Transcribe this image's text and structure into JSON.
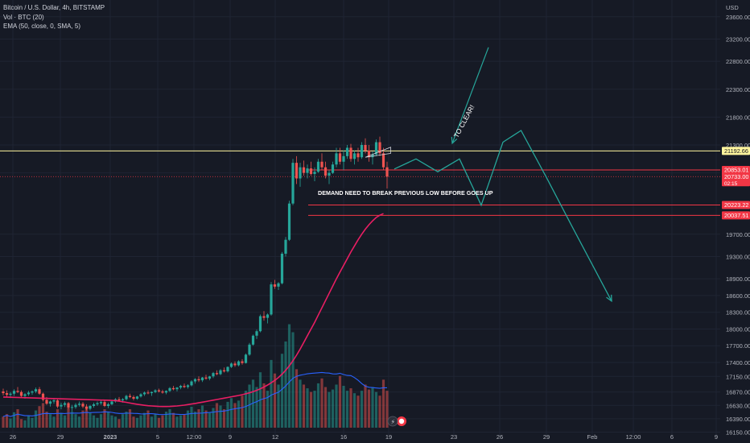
{
  "legend": {
    "symbol_line": "Bitcoin / U.S. Dollar, 4h, BITSTAMP",
    "volume_line": "Vol · BTC (20)",
    "ema_line": "EMA (50, close, 0, SMA, 5)"
  },
  "price_axis": {
    "currency": "USD",
    "ticks": [
      "23600.00",
      "23200.00",
      "22800.00",
      "22300.00",
      "21800.00",
      "21300.00",
      "20800.00",
      "19700.00",
      "19300.00",
      "18900.00",
      "18600.00",
      "18300.00",
      "18000.00",
      "17700.00",
      "17400.00",
      "17150.00",
      "16870.00",
      "16630.00",
      "16390.00",
      "16150.00"
    ],
    "badges": [
      {
        "label": "21192.66",
        "price": 21192.66,
        "color": "#fff59d",
        "text_color": "#131722"
      },
      {
        "label": "20853.01",
        "price": 20853.01,
        "color": "#f23645",
        "text_color": "#ffffff"
      },
      {
        "label": "20733.00",
        "sub": "02:15",
        "price": 20733.0,
        "color": "#f23645",
        "text_color": "#ffffff"
      },
      {
        "label": "20223.22",
        "price": 20223.22,
        "color": "#f23645",
        "text_color": "#ffffff"
      },
      {
        "label": "20037.51",
        "price": 20037.51,
        "color": "#f23645",
        "text_color": "#ffffff"
      }
    ]
  },
  "time_axis": {
    "ticks": [
      "26",
      "29",
      "2023",
      "5",
      "12:00",
      "9",
      "12",
      "16",
      "19",
      "23",
      "26",
      "29",
      "Feb",
      "12:00",
      "6",
      "9"
    ]
  },
  "annotations": {
    "to_clear": "TO CLEAR!",
    "demand": "DEMAND NEED TO BREAK PREVIOUS LOW BEFORE GOES UP"
  },
  "colors": {
    "background": "#161a25",
    "grid": "#1f2433",
    "up": "#26a69a",
    "down": "#ef5350",
    "ema": "#e91e63",
    "projection": "#26a69a",
    "resistance": "#fff59d",
    "levels": "#f23645",
    "volume_ma": "#2962ff"
  },
  "chart_data": {
    "type": "candlestick",
    "title": "Bitcoin / U.S. Dollar, 4h, BITSTAMP",
    "currency": "USD",
    "ylim": [
      16100,
      23900
    ],
    "candles": [
      [
        16880,
        16930,
        16810,
        16850
      ],
      [
        16850,
        16900,
        16780,
        16820
      ],
      [
        16820,
        16870,
        16760,
        16840
      ],
      [
        16840,
        16920,
        16800,
        16890
      ],
      [
        16890,
        16960,
        16850,
        16870
      ],
      [
        16870,
        16900,
        16780,
        16800
      ],
      [
        16800,
        16850,
        16750,
        16830
      ],
      [
        16830,
        16890,
        16800,
        16860
      ],
      [
        16860,
        16900,
        16820,
        16880
      ],
      [
        16880,
        16950,
        16850,
        16920
      ],
      [
        16920,
        16960,
        16820,
        16840
      ],
      [
        16840,
        16860,
        16700,
        16730
      ],
      [
        16730,
        16780,
        16640,
        16660
      ],
      [
        16660,
        16720,
        16610,
        16700
      ],
      [
        16700,
        16760,
        16660,
        16720
      ],
      [
        16720,
        16740,
        16580,
        16610
      ],
      [
        16610,
        16680,
        16560,
        16640
      ],
      [
        16640,
        16700,
        16600,
        16670
      ],
      [
        16670,
        16690,
        16560,
        16590
      ],
      [
        16590,
        16640,
        16520,
        16600
      ],
      [
        16600,
        16670,
        16570,
        16640
      ],
      [
        16640,
        16700,
        16610,
        16660
      ],
      [
        16660,
        16690,
        16580,
        16610
      ],
      [
        16610,
        16650,
        16540,
        16570
      ],
      [
        16570,
        16640,
        16540,
        16620
      ],
      [
        16620,
        16680,
        16590,
        16650
      ],
      [
        16650,
        16700,
        16620,
        16670
      ],
      [
        16670,
        16720,
        16640,
        16690
      ],
      [
        16690,
        16720,
        16600,
        16620
      ],
      [
        16620,
        16680,
        16580,
        16650
      ],
      [
        16650,
        16720,
        16630,
        16700
      ],
      [
        16700,
        16760,
        16680,
        16740
      ],
      [
        16740,
        16780,
        16700,
        16720
      ],
      [
        16720,
        16760,
        16680,
        16740
      ],
      [
        16740,
        16820,
        16720,
        16800
      ],
      [
        16800,
        16840,
        16760,
        16780
      ],
      [
        16780,
        16810,
        16720,
        16750
      ],
      [
        16750,
        16800,
        16730,
        16790
      ],
      [
        16790,
        16850,
        16770,
        16830
      ],
      [
        16830,
        16880,
        16800,
        16860
      ],
      [
        16860,
        16900,
        16830,
        16850
      ],
      [
        16850,
        16880,
        16800,
        16870
      ],
      [
        16870,
        16920,
        16850,
        16900
      ],
      [
        16900,
        16930,
        16860,
        16880
      ],
      [
        16880,
        16910,
        16840,
        16860
      ],
      [
        16860,
        16900,
        16830,
        16890
      ],
      [
        16890,
        16960,
        16870,
        16940
      ],
      [
        16940,
        16980,
        16900,
        16920
      ],
      [
        16920,
        16960,
        16880,
        16950
      ],
      [
        16950,
        17000,
        16920,
        16980
      ],
      [
        16980,
        17020,
        16940,
        16960
      ],
      [
        16960,
        17010,
        16930,
        16990
      ],
      [
        16990,
        17080,
        16970,
        17060
      ],
      [
        17060,
        17120,
        17020,
        17100
      ],
      [
        17100,
        17150,
        17050,
        17080
      ],
      [
        17080,
        17140,
        17050,
        17130
      ],
      [
        17130,
        17180,
        17090,
        17110
      ],
      [
        17110,
        17160,
        17080,
        17150
      ],
      [
        17150,
        17230,
        17120,
        17210
      ],
      [
        17210,
        17260,
        17170,
        17190
      ],
      [
        17190,
        17280,
        17170,
        17260
      ],
      [
        17260,
        17310,
        17220,
        17240
      ],
      [
        17240,
        17330,
        17220,
        17320
      ],
      [
        17320,
        17400,
        17300,
        17380
      ],
      [
        17380,
        17420,
        17320,
        17350
      ],
      [
        17350,
        17440,
        17330,
        17420
      ],
      [
        17420,
        17460,
        17360,
        17390
      ],
      [
        17390,
        17560,
        17380,
        17540
      ],
      [
        17540,
        17750,
        17520,
        17720
      ],
      [
        17720,
        17900,
        17700,
        17880
      ],
      [
        17880,
        17990,
        17820,
        17960
      ],
      [
        17960,
        18260,
        17940,
        18230
      ],
      [
        18230,
        18320,
        18150,
        18200
      ],
      [
        18200,
        18280,
        18100,
        18260
      ],
      [
        18260,
        18840,
        18240,
        18800
      ],
      [
        18800,
        18880,
        18720,
        18760
      ],
      [
        18760,
        18840,
        18700,
        18820
      ],
      [
        18820,
        19380,
        18800,
        19350
      ],
      [
        19350,
        19650,
        19300,
        19600
      ],
      [
        19600,
        20300,
        19580,
        20250
      ],
      [
        20250,
        21050,
        20220,
        20980
      ],
      [
        20980,
        21100,
        20600,
        20700
      ],
      [
        20700,
        20980,
        20550,
        20900
      ],
      [
        20900,
        21020,
        20750,
        20800
      ],
      [
        20800,
        20950,
        20700,
        20880
      ],
      [
        20880,
        21000,
        20750,
        20780
      ],
      [
        20780,
        20900,
        20650,
        20820
      ],
      [
        20820,
        21050,
        20800,
        21000
      ],
      [
        21000,
        21150,
        20850,
        20900
      ],
      [
        20900,
        21000,
        20700,
        20750
      ],
      [
        20750,
        20850,
        20600,
        20800
      ],
      [
        20800,
        21000,
        20780,
        20950
      ],
      [
        20950,
        21250,
        20900,
        21150
      ],
      [
        21150,
        21250,
        20950,
        21000
      ],
      [
        21000,
        21200,
        20850,
        21100
      ],
      [
        21100,
        21300,
        21050,
        21250
      ],
      [
        21250,
        21320,
        21000,
        21050
      ],
      [
        21050,
        21200,
        20950,
        21150
      ],
      [
        21150,
        21250,
        21000,
        21080
      ],
      [
        21080,
        21350,
        21050,
        21300
      ],
      [
        21300,
        21420,
        21150,
        21200
      ],
      [
        21200,
        21300,
        21000,
        21080
      ],
      [
        21080,
        21180,
        20950,
        21130
      ],
      [
        21130,
        21400,
        21100,
        21350
      ],
      [
        21350,
        21450,
        21100,
        21150
      ],
      [
        21150,
        21250,
        20850,
        20900
      ],
      [
        20900,
        21000,
        20500,
        20733
      ]
    ],
    "volumes": [
      18,
      22,
      15,
      25,
      30,
      14,
      12,
      20,
      16,
      28,
      35,
      40,
      26,
      22,
      18,
      30,
      24,
      20,
      32,
      26,
      22,
      18,
      28,
      34,
      24,
      20,
      16,
      22,
      30,
      26,
      20,
      18,
      14,
      22,
      26,
      30,
      18,
      16,
      20,
      24,
      28,
      18,
      22,
      16,
      20,
      26,
      30,
      24,
      18,
      20,
      22,
      28,
      34,
      26,
      30,
      36,
      28,
      24,
      32,
      40,
      36,
      30,
      42,
      48,
      40,
      44,
      52,
      60,
      70,
      78,
      66,
      90,
      72,
      60,
      110,
      88,
      70,
      120,
      140,
      168,
      155,
      95,
      78,
      70,
      64,
      58,
      60,
      72,
      80,
      66,
      58,
      62,
      70,
      84,
      68,
      60,
      64,
      56,
      52,
      60,
      70,
      62,
      66,
      58,
      52,
      78,
      60
    ],
    "ema50": [
      16720,
      16715,
      16705,
      16695,
      16685,
      16672,
      16660,
      16650,
      16640,
      16632,
      16625,
      16620,
      16615,
      16612,
      16610,
      16610,
      16612,
      16615,
      16620,
      16627,
      16635,
      16645,
      16655,
      16665,
      16676,
      16688,
      16700,
      16712,
      16724,
      16736,
      16748,
      16760,
      16772,
      16784,
      16796,
      16808,
      16822,
      16838,
      16856,
      16876,
      16900,
      16928,
      16960,
      16996,
      17036,
      17080,
      17130,
      17190,
      17260,
      17340,
      17430,
      17530,
      17640,
      17760,
      17880,
      18000,
      18120,
      18250,
      18380,
      18510,
      18640,
      18770,
      18900,
      19020,
      19140,
      19260,
      19380,
      19490,
      19600,
      19700,
      19790,
      19870,
      19940,
      20000,
      20040,
      20070
    ],
    "ema_start_index": 30,
    "levels": [
      {
        "price": 21192.66,
        "type": "resistance"
      },
      {
        "price": 20853.01,
        "type": "level"
      },
      {
        "price": 20733.0,
        "type": "current_price"
      },
      {
        "price": 20223.22,
        "type": "demand_zone_top"
      },
      {
        "price": 20037.51,
        "type": "demand_zone_bottom"
      }
    ],
    "projection": [
      [
        108,
        20870
      ],
      [
        114,
        21050
      ],
      [
        120,
        20820
      ],
      [
        126,
        21050
      ],
      [
        132,
        20220
      ],
      [
        138,
        21350
      ],
      [
        143,
        21560
      ],
      [
        150,
        20720
      ],
      [
        157,
        19850
      ],
      [
        168,
        18500
      ]
    ],
    "to_clear_arrow": [
      [
        134,
        23050
      ],
      [
        124,
        21330
      ]
    ]
  }
}
